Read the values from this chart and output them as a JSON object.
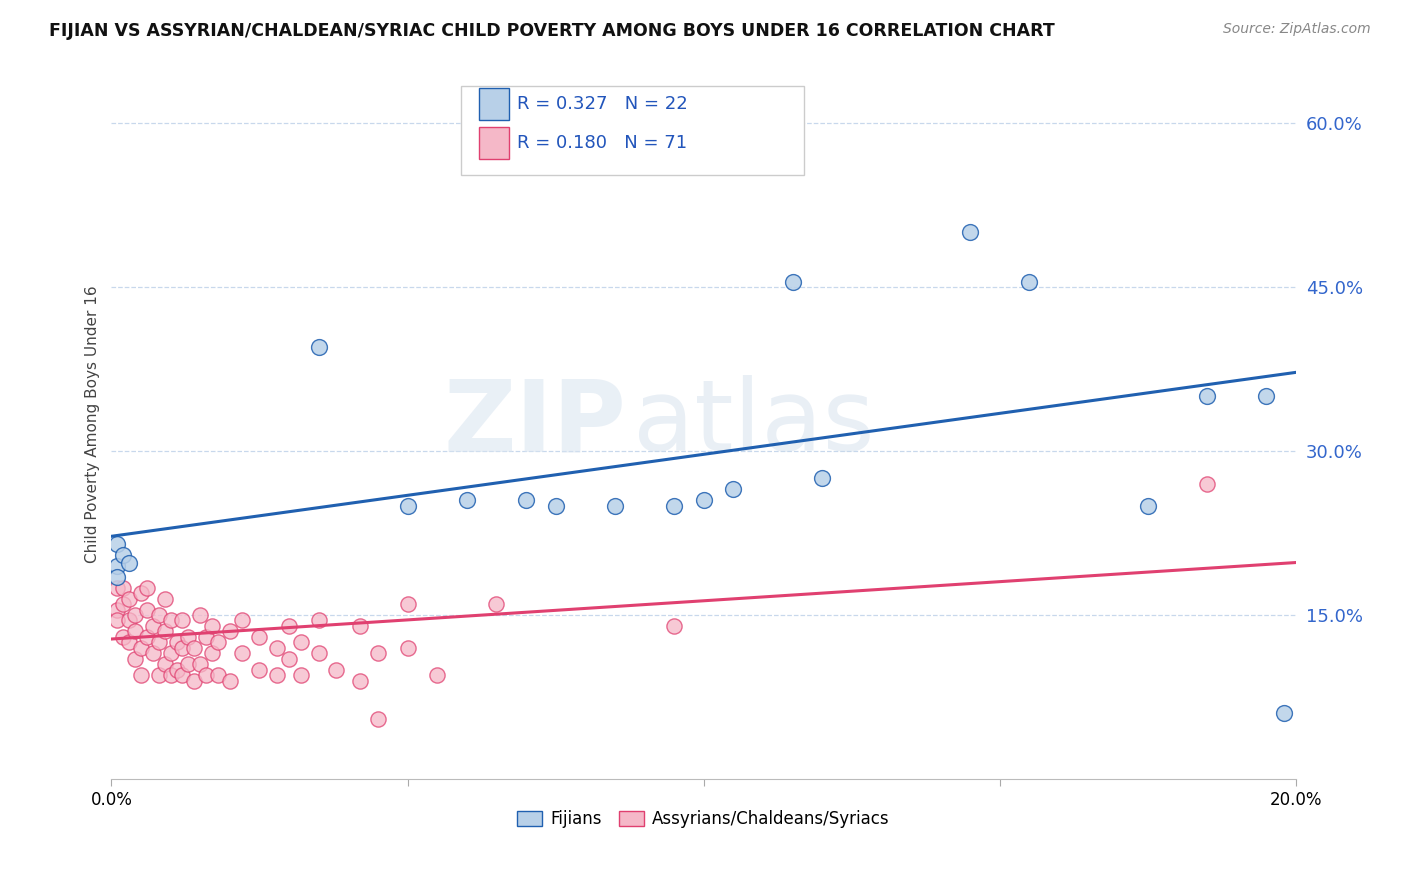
{
  "title": "FIJIAN VS ASSYRIAN/CHALDEAN/SYRIAC CHILD POVERTY AMONG BOYS UNDER 16 CORRELATION CHART",
  "source": "Source: ZipAtlas.com",
  "ylabel": "Child Poverty Among Boys Under 16",
  "xlim": [
    0.0,
    0.2
  ],
  "ylim": [
    0.0,
    0.65
  ],
  "yticks": [
    0.15,
    0.3,
    0.45,
    0.6
  ],
  "ytick_labels": [
    "15.0%",
    "30.0%",
    "45.0%",
    "60.0%"
  ],
  "xticks": [
    0.0,
    0.05,
    0.1,
    0.15,
    0.2
  ],
  "xtick_labels": [
    "0.0%",
    "",
    "",
    "",
    "20.0%"
  ],
  "legend_labels": [
    "Fijians",
    "Assyrians/Chaldeans/Syriacs"
  ],
  "fijian_R": 0.327,
  "fijian_N": 22,
  "assyrian_R": 0.18,
  "assyrian_N": 71,
  "fijian_color": "#b8d0e8",
  "assyrian_color": "#f5b8c8",
  "fijian_line_color": "#2060b0",
  "assyrian_line_color": "#e04070",
  "fijian_line": [
    0.0,
    0.222,
    0.2,
    0.372
  ],
  "assyrian_line": [
    0.0,
    0.128,
    0.2,
    0.198
  ],
  "watermark_zip": "ZIP",
  "watermark_atlas": "atlas",
  "fijian_points": [
    [
      0.001,
      0.215
    ],
    [
      0.001,
      0.195
    ],
    [
      0.001,
      0.185
    ],
    [
      0.002,
      0.205
    ],
    [
      0.003,
      0.198
    ],
    [
      0.035,
      0.395
    ],
    [
      0.05,
      0.25
    ],
    [
      0.06,
      0.255
    ],
    [
      0.07,
      0.255
    ],
    [
      0.075,
      0.25
    ],
    [
      0.085,
      0.25
    ],
    [
      0.095,
      0.25
    ],
    [
      0.1,
      0.255
    ],
    [
      0.105,
      0.265
    ],
    [
      0.115,
      0.455
    ],
    [
      0.12,
      0.275
    ],
    [
      0.145,
      0.5
    ],
    [
      0.155,
      0.455
    ],
    [
      0.175,
      0.25
    ],
    [
      0.185,
      0.35
    ],
    [
      0.195,
      0.35
    ],
    [
      0.198,
      0.06
    ]
  ],
  "assyrian_points": [
    [
      0.001,
      0.175
    ],
    [
      0.001,
      0.155
    ],
    [
      0.001,
      0.145
    ],
    [
      0.002,
      0.13
    ],
    [
      0.002,
      0.16
    ],
    [
      0.002,
      0.175
    ],
    [
      0.003,
      0.125
    ],
    [
      0.003,
      0.145
    ],
    [
      0.003,
      0.165
    ],
    [
      0.004,
      0.11
    ],
    [
      0.004,
      0.135
    ],
    [
      0.004,
      0.15
    ],
    [
      0.005,
      0.12
    ],
    [
      0.005,
      0.095
    ],
    [
      0.005,
      0.17
    ],
    [
      0.006,
      0.13
    ],
    [
      0.006,
      0.155
    ],
    [
      0.006,
      0.175
    ],
    [
      0.007,
      0.115
    ],
    [
      0.007,
      0.14
    ],
    [
      0.008,
      0.095
    ],
    [
      0.008,
      0.125
    ],
    [
      0.008,
      0.15
    ],
    [
      0.009,
      0.105
    ],
    [
      0.009,
      0.135
    ],
    [
      0.009,
      0.165
    ],
    [
      0.01,
      0.095
    ],
    [
      0.01,
      0.115
    ],
    [
      0.01,
      0.145
    ],
    [
      0.011,
      0.125
    ],
    [
      0.011,
      0.1
    ],
    [
      0.012,
      0.095
    ],
    [
      0.012,
      0.12
    ],
    [
      0.012,
      0.145
    ],
    [
      0.013,
      0.105
    ],
    [
      0.013,
      0.13
    ],
    [
      0.014,
      0.09
    ],
    [
      0.014,
      0.12
    ],
    [
      0.015,
      0.15
    ],
    [
      0.015,
      0.105
    ],
    [
      0.016,
      0.13
    ],
    [
      0.016,
      0.095
    ],
    [
      0.017,
      0.115
    ],
    [
      0.017,
      0.14
    ],
    [
      0.018,
      0.095
    ],
    [
      0.018,
      0.125
    ],
    [
      0.02,
      0.135
    ],
    [
      0.02,
      0.09
    ],
    [
      0.022,
      0.115
    ],
    [
      0.022,
      0.145
    ],
    [
      0.025,
      0.1
    ],
    [
      0.025,
      0.13
    ],
    [
      0.028,
      0.12
    ],
    [
      0.028,
      0.095
    ],
    [
      0.03,
      0.11
    ],
    [
      0.03,
      0.14
    ],
    [
      0.032,
      0.095
    ],
    [
      0.032,
      0.125
    ],
    [
      0.035,
      0.115
    ],
    [
      0.035,
      0.145
    ],
    [
      0.038,
      0.1
    ],
    [
      0.042,
      0.09
    ],
    [
      0.042,
      0.14
    ],
    [
      0.045,
      0.055
    ],
    [
      0.045,
      0.115
    ],
    [
      0.05,
      0.16
    ],
    [
      0.05,
      0.12
    ],
    [
      0.055,
      0.095
    ],
    [
      0.065,
      0.16
    ],
    [
      0.095,
      0.14
    ],
    [
      0.185,
      0.27
    ]
  ]
}
